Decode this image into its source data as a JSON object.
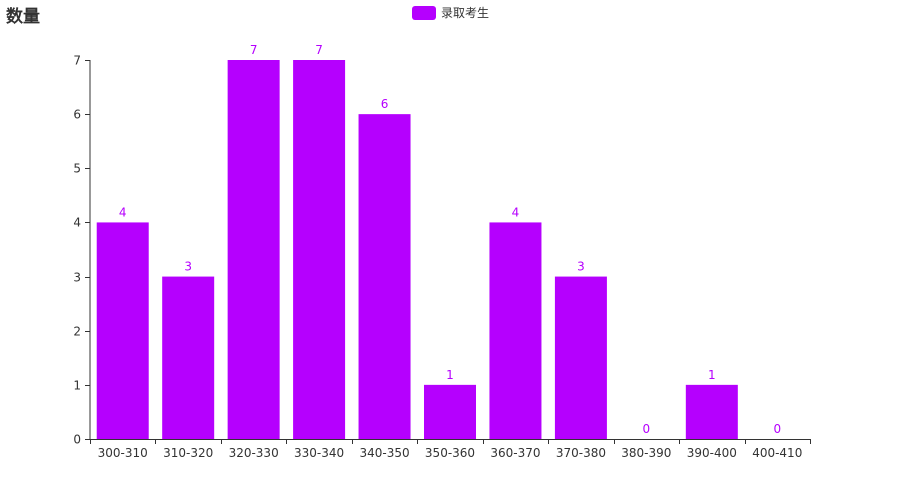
{
  "chart_data": {
    "type": "bar",
    "title": "数量",
    "categories": [
      "300-310",
      "310-320",
      "320-330",
      "330-340",
      "340-350",
      "350-360",
      "360-370",
      "370-380",
      "380-390",
      "390-400",
      "400-410"
    ],
    "series": [
      {
        "name": "录取考生",
        "values": [
          4,
          3,
          7,
          7,
          6,
          1,
          4,
          3,
          0,
          1,
          0
        ],
        "color": "#b500fe"
      }
    ],
    "ylim": [
      0,
      7
    ],
    "yticks": [
      0,
      1,
      2,
      3,
      4,
      5,
      6,
      7
    ],
    "legend_position": "top-center",
    "grid": false,
    "show_data_labels": true
  }
}
